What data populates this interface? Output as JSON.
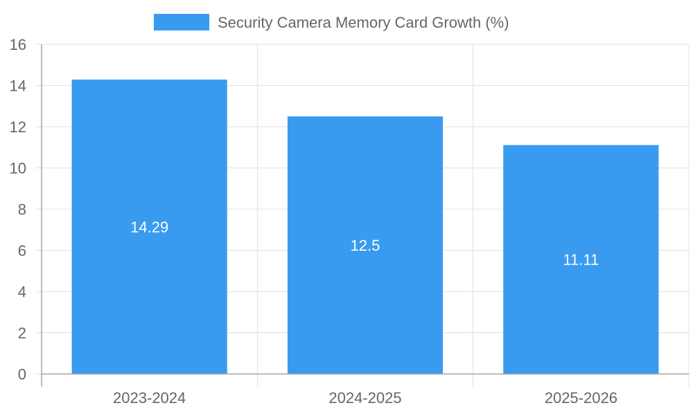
{
  "chart_data": {
    "type": "bar",
    "categories": [
      "2023-2024",
      "2024-2025",
      "2025-2026"
    ],
    "series": [
      {
        "name": "Security Camera Memory Card Growth (%)",
        "values": [
          14.29,
          12.5,
          11.11
        ]
      }
    ],
    "data_labels": [
      "14.29",
      "12.5",
      "11.11"
    ],
    "y_ticks": [
      "0",
      "2",
      "4",
      "6",
      "8",
      "10",
      "12",
      "14",
      "16"
    ],
    "ylim": [
      0,
      16
    ],
    "grid": true,
    "legend_position": "top",
    "colors": {
      "bar": "#399bf0",
      "grid": "#e0e0e0",
      "axis": "#a6a6a6",
      "tick_text": "#666666",
      "label_text": "#ffffff"
    }
  }
}
